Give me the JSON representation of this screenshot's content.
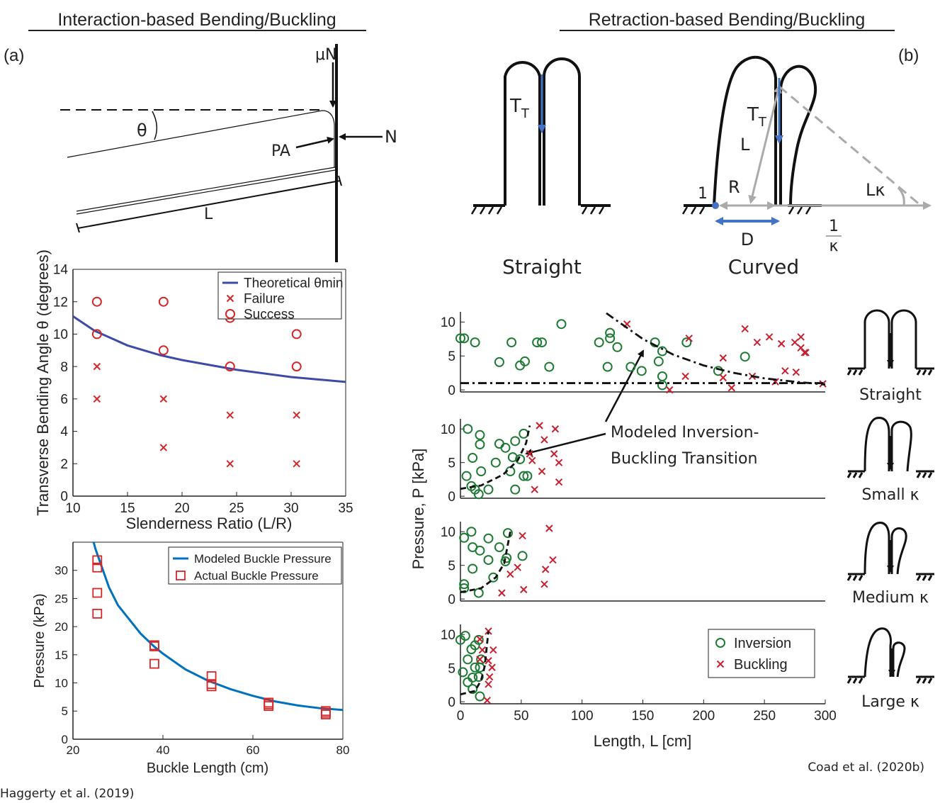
{
  "header": {
    "left_title": "Interaction-based Bending/Buckling",
    "right_title": "Retraction-based Bending/Buckling",
    "left_panel": "(a)",
    "right_panel": "(b)"
  },
  "diagram_a": {
    "friction": "μN",
    "normal": "N",
    "angle": "θ",
    "contact": "PA",
    "length": "L"
  },
  "diagram_b": {
    "straight_label": "Straight",
    "curved_label": "Curved",
    "tension": "T",
    "tension_subscript": "T",
    "length": "L",
    "radius": "R",
    "point": "1",
    "distance": "D",
    "arc_angle": "Lκ",
    "inverse_numerator": "1",
    "inverse_denominator": "κ"
  },
  "icons": [
    "Straight",
    "Small κ",
    "Medium κ",
    "Large κ"
  ],
  "annotation": [
    "Modeled Inversion-",
    "Buckling Transition"
  ],
  "citations": {
    "left": "Haggerty et al. (2019)",
    "right": "Coad et al. (2020b)"
  },
  "chart_data": [
    {
      "type": "scatter",
      "xlabel": "Slenderness Ratio (L/R)",
      "ylabel": "Transverse Bending Angle θ (degrees)",
      "xlim": [
        10,
        35
      ],
      "xticks": [
        10,
        15,
        20,
        25,
        30,
        35
      ],
      "ylim": [
        0,
        14
      ],
      "yticks": [
        0,
        2,
        4,
        6,
        8,
        10,
        12,
        14
      ],
      "legend": "upper right",
      "series": [
        {
          "name": "Theoretical θmin",
          "color": "#3d4ba6",
          "marker": "solid",
          "x": [
            10,
            12,
            15,
            18,
            20,
            25,
            30,
            35
          ],
          "values": [
            11.1,
            10.2,
            9.3,
            8.7,
            8.4,
            7.8,
            7.35,
            7.05
          ]
        },
        {
          "name": "Failure",
          "color": "#d62728",
          "marker": "x",
          "x": [
            12.2,
            12.2,
            18.3,
            18.3,
            24.4,
            24.4,
            30.5,
            30.5
          ],
          "values": [
            8,
            6,
            6,
            3,
            5,
            2,
            5,
            2
          ]
        },
        {
          "name": "Success",
          "color": "#d62728",
          "marker": "circle",
          "x": [
            12.2,
            12.2,
            18.3,
            18.3,
            24.4,
            24.4,
            30.5,
            30.5
          ],
          "values": [
            12,
            10,
            12,
            9,
            11,
            8,
            10,
            8
          ]
        }
      ]
    },
    {
      "type": "scatter",
      "xlabel": "Buckle Length (cm)",
      "ylabel": "Pressure (kPa)",
      "xlim": [
        20,
        80
      ],
      "xticks": [
        20,
        40,
        60,
        80
      ],
      "ylim": [
        0,
        35
      ],
      "yticks": [
        0,
        5,
        10,
        15,
        20,
        25,
        30
      ],
      "legend": "upper right",
      "series": [
        {
          "name": "Modeled Buckle Pressure",
          "color": "#0072bd",
          "marker": "solid",
          "x": [
            24.6,
            25,
            28,
            30,
            35,
            38,
            40,
            45,
            50,
            55,
            60,
            65,
            70,
            75,
            80
          ],
          "values": [
            35,
            33.8,
            27,
            23.8,
            18.8,
            16.5,
            15.2,
            12.4,
            10.4,
            8.9,
            7.7,
            6.7,
            6.0,
            5.5,
            5.2
          ]
        },
        {
          "name": "Actual Buckle Pressure",
          "color": "#d62728",
          "marker": "square",
          "x": [
            25.4,
            25.4,
            25.4,
            25.4,
            38.1,
            38.1,
            38.1,
            50.8,
            50.8,
            50.8,
            63.5,
            63.5,
            63.5,
            76.2,
            76.2,
            76.2
          ],
          "values": [
            31.8,
            30.5,
            26,
            22.3,
            16.7,
            16.5,
            13.4,
            11.2,
            9.8,
            9.4,
            6.5,
            6.2,
            5.9,
            5.0,
            4.7,
            4.4
          ]
        }
      ]
    },
    {
      "type": "scatter",
      "xlim": [
        0,
        300
      ],
      "ylim": [
        -0.3,
        11.5
      ],
      "yticks": [
        0,
        5,
        10
      ],
      "series": [
        {
          "color": "#1e7b34",
          "marker": "circle",
          "x": [
            0,
            3,
            12,
            32,
            42,
            49,
            53,
            63,
            67,
            73,
            83,
            114,
            121,
            123,
            123,
            129,
            140,
            149,
            160,
            166,
            163,
            166,
            166,
            186,
            212,
            234
          ],
          "values": [
            7.6,
            7.6,
            7.0,
            4.1,
            7.0,
            3.6,
            4.2,
            7.0,
            7.0,
            3.4,
            9.7,
            7.0,
            3.4,
            8.4,
            7.6,
            6.3,
            3.4,
            2.8,
            7.0,
            5.7,
            4.2,
            2.0,
            0.7,
            7.0,
            2.8,
            4.9
          ]
        },
        {
          "color": "#c8202f",
          "marker": "x",
          "x": [
            137,
            172,
            188,
            185,
            216,
            216,
            234,
            244,
            254,
            240,
            223,
            259,
            264,
            275,
            280,
            280,
            283,
            284,
            267,
            276,
            298
          ],
          "values": [
            9.7,
            0,
            7.6,
            2.0,
            4.7,
            1.8,
            9.0,
            7.0,
            7.8,
            2.0,
            0.3,
            1.2,
            6.8,
            7.0,
            7.8,
            6.2,
            5.5,
            5.5,
            2.8,
            2.6,
            0.9
          ]
        },
        {
          "color": "#111111",
          "marker": "dashdot",
          "x": [
            0,
            300
          ],
          "values": [
            1,
            1
          ]
        },
        {
          "color": "#111111",
          "marker": "dashdot",
          "x": [
            120,
            150,
            175,
            200,
            225,
            250,
            275,
            300
          ],
          "values": [
            11.3,
            7.5,
            5.2,
            3.6,
            2.5,
            1.7,
            1.2,
            0.8
          ]
        }
      ]
    },
    {
      "type": "scatter",
      "ylabel": "Pressure, P [kPa]",
      "xlim": [
        0,
        300
      ],
      "ylim": [
        -0.3,
        11.5
      ],
      "yticks": [
        0,
        5,
        10
      ],
      "series": [
        {
          "color": "#1e7b34",
          "marker": "circle",
          "x": [
            6,
            16,
            16,
            10,
            32,
            37,
            29,
            45,
            52,
            43,
            49,
            17,
            5,
            9,
            12,
            15,
            23,
            41,
            45,
            52,
            55
          ],
          "values": [
            10,
            9.1,
            7.7,
            5.7,
            7.8,
            7.2,
            5.0,
            8.2,
            9.3,
            5.8,
            5.5,
            3.7,
            3.0,
            1.5,
            1.0,
            0.3,
            1.0,
            3.7,
            1.0,
            3.0,
            3.0
          ]
        },
        {
          "color": "#c8202f",
          "marker": "x",
          "x": [
            65,
            69,
            78,
            77,
            81,
            67,
            81,
            61,
            59,
            57
          ],
          "values": [
            10.5,
            8.4,
            10,
            6.3,
            5.0,
            3.7,
            2.1,
            1.0,
            5.3,
            6.3
          ]
        },
        {
          "color": "#111111",
          "marker": "dashed",
          "x": [
            0,
            17,
            35,
            47,
            54,
            57
          ],
          "values": [
            1.1,
            1.6,
            3.2,
            5.3,
            7.9,
            10.5
          ]
        }
      ]
    },
    {
      "type": "scatter",
      "xlim": [
        0,
        300
      ],
      "ylim": [
        -0.3,
        11.5
      ],
      "yticks": [
        0,
        5,
        10
      ],
      "series": [
        {
          "color": "#1e7b34",
          "marker": "circle",
          "x": [
            3,
            10,
            9,
            16,
            10,
            23,
            23,
            32,
            39,
            37,
            51,
            3,
            3,
            15,
            27,
            38
          ],
          "values": [
            9.1,
            7.7,
            10.0,
            7.2,
            4.5,
            5.8,
            9.0,
            7.7,
            9.8,
            5.6,
            6.4,
            2.2,
            1.6,
            0.9,
            3.2,
            6.1
          ]
        },
        {
          "color": "#c8202f",
          "marker": "x",
          "x": [
            73,
            51,
            47,
            70,
            76,
            69,
            52,
            34,
            41
          ],
          "values": [
            10.5,
            9.4,
            4.7,
            4.4,
            5.8,
            2.2,
            1.4,
            0.9,
            3.7
          ]
        },
        {
          "color": "#111111",
          "marker": "dashed",
          "x": [
            0,
            17,
            29,
            36,
            41
          ],
          "values": [
            1.0,
            1.6,
            3.2,
            5.3,
            10
          ]
        }
      ]
    },
    {
      "type": "scatter",
      "xlabel": "Length, L [cm]",
      "xlim": [
        0,
        300
      ],
      "xticks": [
        0,
        50,
        100,
        150,
        200,
        250,
        300
      ],
      "ylim": [
        -0.3,
        11.5
      ],
      "yticks": [
        0,
        5,
        10
      ],
      "legend": "upper right",
      "series": [
        {
          "name": "Inversion",
          "color": "#1e7b34",
          "marker": "circle",
          "x": [
            0,
            4,
            9,
            12,
            15,
            6,
            17,
            2,
            12,
            16,
            10,
            15,
            6,
            10,
            16
          ],
          "values": [
            9.2,
            9.8,
            7.8,
            8.4,
            9.2,
            6.3,
            6.3,
            4.4,
            5.1,
            5.1,
            3.6,
            3.7,
            2.9,
            1.9,
            0.8
          ]
        },
        {
          "name": "Buckling",
          "color": "#c8202f",
          "marker": "x",
          "x": [
            23,
            16,
            18,
            27,
            16,
            23,
            26,
            24,
            23,
            22
          ],
          "values": [
            10.5,
            9.3,
            7.7,
            7.7,
            6.3,
            6.1,
            5.1,
            3.7,
            2.6,
            0.2
          ]
        },
        {
          "color": "#111111",
          "marker": "dashed",
          "x": [
            0,
            12,
            17,
            20,
            23
          ],
          "values": [
            1.1,
            1.6,
            3.2,
            5.3,
            10.5
          ]
        }
      ]
    }
  ]
}
